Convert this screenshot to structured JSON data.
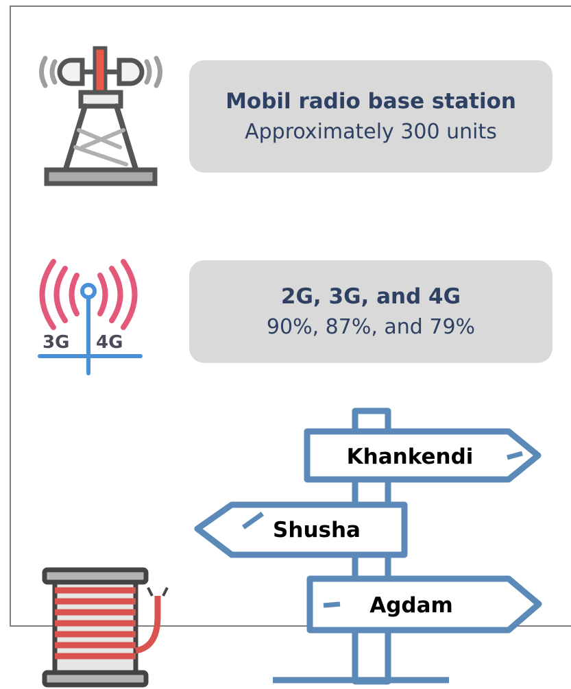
{
  "cards": [
    {
      "title": "Mobil radio base station",
      "body": "Approximately 300 units"
    },
    {
      "title": "2G, 3G, and 4G",
      "body": "90%, 87%, and 79%"
    }
  ],
  "network_icon": {
    "labels": [
      "3G",
      "4G"
    ]
  },
  "signposts": [
    "Khankendi",
    "Shusha",
    "Agdam"
  ]
}
